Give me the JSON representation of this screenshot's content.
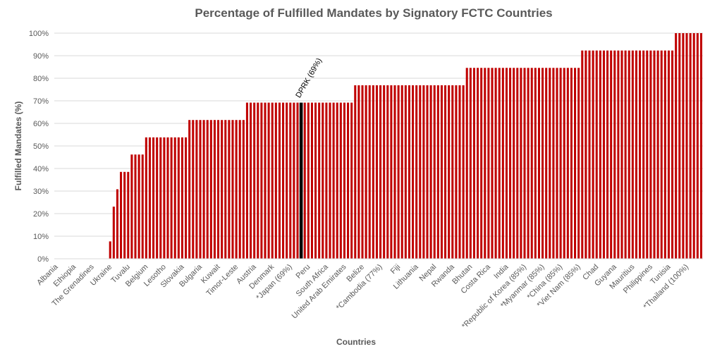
{
  "chart_data": {
    "type": "bar",
    "title": "Percentage of Fulfilled Mandates by Signatory FCTC Countries",
    "xlabel": "Countries",
    "ylabel": "Fulfilled Mandates (%)",
    "color": "#c00000",
    "grid": true,
    "ylim": [
      0,
      100
    ],
    "yticks": [
      {
        "value": 0,
        "label": "0%"
      },
      {
        "value": 10,
        "label": "10%"
      },
      {
        "value": 20,
        "label": "20%"
      },
      {
        "value": 30,
        "label": "30%"
      },
      {
        "value": 40,
        "label": "40%"
      },
      {
        "value": 50,
        "label": "50%"
      },
      {
        "value": 60,
        "label": "60%"
      },
      {
        "value": 70,
        "label": "70%"
      },
      {
        "value": 80,
        "label": "80%"
      },
      {
        "value": 90,
        "label": "90%"
      },
      {
        "value": 100,
        "label": "100%"
      }
    ],
    "annotation": {
      "text": "DPRK (69%)",
      "index": 68,
      "color": "#000000"
    },
    "categories": [
      "Albania",
      null,
      null,
      null,
      null,
      "Ethiopia",
      null,
      null,
      null,
      null,
      "The Grenadines",
      null,
      null,
      null,
      null,
      "Ukraine",
      null,
      null,
      null,
      null,
      "Tuvalu",
      null,
      null,
      null,
      null,
      "Belgium",
      null,
      null,
      null,
      null,
      "Lesotho",
      null,
      null,
      null,
      null,
      "Slovakia",
      null,
      null,
      null,
      null,
      "Bulgaria",
      null,
      null,
      null,
      null,
      "Kuwait",
      null,
      null,
      null,
      null,
      "Timor-Leste",
      null,
      null,
      null,
      null,
      "Austria",
      null,
      null,
      null,
      null,
      "Denmark",
      null,
      null,
      null,
      null,
      "*Japan (69%)",
      null,
      null,
      null,
      null,
      "Peru",
      null,
      null,
      null,
      null,
      "South Africa",
      null,
      null,
      null,
      null,
      "United Arab Emirates",
      null,
      null,
      null,
      null,
      "Belize",
      null,
      null,
      null,
      null,
      "*Cambodia (77%)",
      null,
      null,
      null,
      null,
      "Fiji",
      null,
      null,
      null,
      null,
      "Lithuania",
      null,
      null,
      null,
      null,
      "Nepal",
      null,
      null,
      null,
      null,
      "Rwanda",
      null,
      null,
      null,
      null,
      "Bhutan",
      null,
      null,
      null,
      null,
      "Costa Rica",
      null,
      null,
      null,
      null,
      "India",
      null,
      null,
      null,
      null,
      "*Republic of Korea (85%)",
      null,
      null,
      null,
      null,
      "*Myanmar (85%)",
      null,
      null,
      null,
      null,
      "*China (85%)",
      null,
      null,
      null,
      null,
      "*Viet Nam (85%)",
      null,
      null,
      null,
      null,
      "Chad",
      null,
      null,
      null,
      null,
      "Guyana",
      null,
      null,
      null,
      null,
      "Mauritius",
      null,
      null,
      null,
      null,
      "Philippines",
      null,
      null,
      null,
      null,
      "Tunisia",
      null,
      null,
      null,
      null,
      "*Thailand (100%)",
      null,
      null,
      null,
      null
    ],
    "values": [
      0,
      0,
      0,
      0,
      0,
      0,
      0,
      0,
      0,
      0,
      0,
      0,
      0,
      0,
      0,
      7.7,
      23.1,
      30.8,
      38.5,
      38.5,
      38.5,
      46.2,
      46.2,
      46.2,
      46.2,
      53.8,
      53.8,
      53.8,
      53.8,
      53.8,
      53.8,
      53.8,
      53.8,
      53.8,
      53.8,
      53.8,
      53.8,
      61.5,
      61.5,
      61.5,
      61.5,
      61.5,
      61.5,
      61.5,
      61.5,
      61.5,
      61.5,
      61.5,
      61.5,
      61.5,
      61.5,
      61.5,
      61.5,
      69.2,
      69.2,
      69.2,
      69.2,
      69.2,
      69.2,
      69.2,
      69.2,
      69.2,
      69.2,
      69.2,
      69.2,
      69.2,
      69.2,
      69.2,
      69.2,
      69.2,
      69.2,
      69.2,
      69.2,
      69.2,
      69.2,
      69.2,
      69.2,
      69.2,
      69.2,
      69.2,
      69.2,
      69.2,
      69.2,
      76.9,
      76.9,
      76.9,
      76.9,
      76.9,
      76.9,
      76.9,
      76.9,
      76.9,
      76.9,
      76.9,
      76.9,
      76.9,
      76.9,
      76.9,
      76.9,
      76.9,
      76.9,
      76.9,
      76.9,
      76.9,
      76.9,
      76.9,
      76.9,
      76.9,
      76.9,
      76.9,
      76.9,
      76.9,
      76.9,
      76.9,
      84.6,
      84.6,
      84.6,
      84.6,
      84.6,
      84.6,
      84.6,
      84.6,
      84.6,
      84.6,
      84.6,
      84.6,
      84.6,
      84.6,
      84.6,
      84.6,
      84.6,
      84.6,
      84.6,
      84.6,
      84.6,
      84.6,
      84.6,
      84.6,
      84.6,
      84.6,
      84.6,
      84.6,
      84.6,
      84.6,
      84.6,
      84.6,
      92.3,
      92.3,
      92.3,
      92.3,
      92.3,
      92.3,
      92.3,
      92.3,
      92.3,
      92.3,
      92.3,
      92.3,
      92.3,
      92.3,
      92.3,
      92.3,
      92.3,
      92.3,
      92.3,
      92.3,
      92.3,
      92.3,
      92.3,
      92.3,
      92.3,
      92.3,
      100,
      100,
      100,
      100,
      100,
      100,
      100,
      100
    ]
  }
}
